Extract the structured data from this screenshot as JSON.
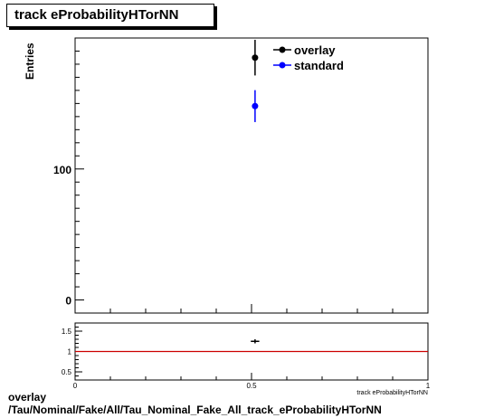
{
  "title": "track eProbabilityHTorNN",
  "footer": {
    "line1": "overlay",
    "line2": "/Tau/Nominal/Fake/All/Tau_Nominal_Fake_All_track_eProbabilityHTorNN"
  },
  "colors": {
    "overlay": "#000000",
    "standard": "#0000ff",
    "ratio_line": "#cc0000"
  },
  "chart_data": [
    {
      "type": "scatter",
      "title": "track eProbabilityHTorNN",
      "xlabel": "",
      "ylabel": "Entries",
      "xlim": [
        0,
        1
      ],
      "ylim": [
        -10,
        200
      ],
      "y_tick_labels": [
        "0",
        "100"
      ],
      "legend_position": "top-right",
      "series": [
        {
          "name": "overlay",
          "color": "#000000",
          "points": [
            {
              "x": 0.51,
              "y": 185,
              "yerr": 13.6
            }
          ]
        },
        {
          "name": "standard",
          "color": "#0000ff",
          "points": [
            {
              "x": 0.51,
              "y": 148,
              "yerr": 12.2
            }
          ]
        }
      ]
    },
    {
      "type": "scatter",
      "title": "",
      "xlabel": "track eProbabilityHTorNN",
      "ylabel": "",
      "xlim": [
        0,
        1
      ],
      "ylim": [
        0.3,
        1.7
      ],
      "x_tick_labels": [
        "0",
        "0.5",
        "1"
      ],
      "y_tick_labels": [
        "0.5",
        "1",
        "1.5"
      ],
      "reference_line": 1,
      "series": [
        {
          "name": "ratio",
          "color": "#000000",
          "points": [
            {
              "x": 0.51,
              "y": 1.25,
              "yerr": 0.05,
              "xerr": 0.012
            }
          ]
        }
      ]
    }
  ]
}
